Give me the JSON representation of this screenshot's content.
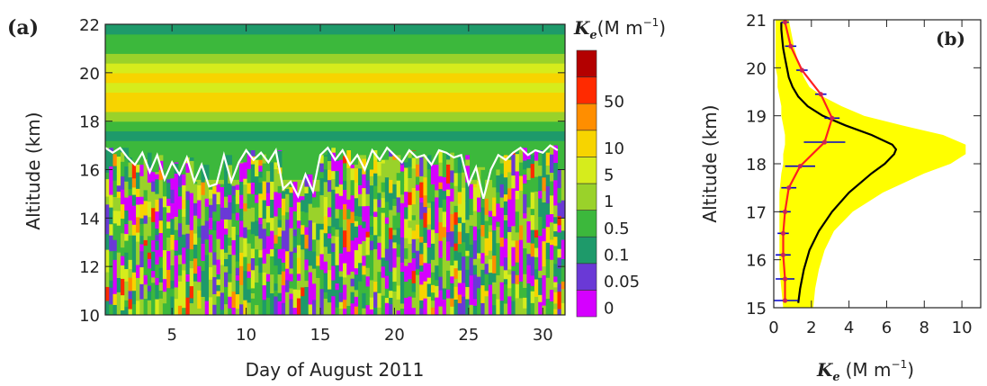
{
  "chart_data": [
    {
      "type": "heatmap",
      "panel_label": "(a)",
      "xlabel": "Day of August 2011",
      "ylabel": "Altitude (km)",
      "xlim": [
        0.5,
        31.5
      ],
      "ylim": [
        10,
        22
      ],
      "x_ticks": [
        "5",
        "10",
        "15",
        "20",
        "25",
        "30"
      ],
      "x_tick_values": [
        5,
        10,
        15,
        20,
        25,
        30
      ],
      "y_ticks": [
        "10",
        "12",
        "14",
        "16",
        "18",
        "20",
        "22"
      ],
      "y_tick_values": [
        10,
        12,
        14,
        16,
        18,
        20,
        22
      ],
      "colorbar": {
        "title_symbol": "K",
        "title_sub": "e",
        "title_units": "(M m",
        "title_exp": "−1",
        "title_close": ")",
        "levels": [
          "0",
          "0.05",
          "0.1",
          "0.5",
          "1",
          "5",
          "10",
          "50"
        ],
        "colors": [
          "#d500ff",
          "#6a39d6",
          "#1e9a6a",
          "#3cb83c",
          "#9ad22a",
          "#d6ec1c",
          "#f7d400",
          "#ff8e00",
          "#ff2a00",
          "#b30000"
        ]
      },
      "background_profile": {
        "altitude_km": [
          10,
          10.8,
          11.6,
          12.4,
          13.2,
          14,
          14.8,
          15.6,
          16.0,
          16.4,
          16.8,
          17.2,
          17.6,
          18.0,
          18.4,
          18.8,
          19.2,
          19.6,
          20.0,
          20.4,
          20.8,
          21.2,
          21.6,
          22
        ],
        "level_index": [
          5,
          5,
          5,
          5,
          4,
          4,
          4,
          3,
          3,
          3,
          3,
          2,
          3,
          4,
          6,
          6,
          5,
          6,
          5,
          4,
          3,
          3,
          2,
          2
        ]
      },
      "tropopause_line": {
        "color": "#ffffff",
        "day": [
          0.5,
          1,
          1.5,
          2,
          2.5,
          3,
          3.5,
          4,
          4.5,
          5,
          5.5,
          6,
          6.5,
          7,
          7.5,
          8,
          8.5,
          9,
          9.5,
          10,
          10.5,
          11,
          11.5,
          12,
          12.5,
          13,
          13.5,
          14,
          14.5,
          15,
          15.5,
          16,
          16.5,
          17,
          17.5,
          18,
          18.5,
          19,
          19.5,
          20,
          20.5,
          21,
          21.5,
          22,
          22.5,
          23,
          23.5,
          24,
          24.5,
          25,
          25.5,
          26,
          26.5,
          27,
          27.5,
          28,
          28.5,
          29,
          29.5,
          30,
          30.5,
          31
        ],
        "altitude_km": [
          16.9,
          16.7,
          16.9,
          16.5,
          16.2,
          16.7,
          15.9,
          16.6,
          15.6,
          16.3,
          15.8,
          16.5,
          15.5,
          16.2,
          15.3,
          15.4,
          16.6,
          15.5,
          16.3,
          16.8,
          16.4,
          16.7,
          16.3,
          16.8,
          15.2,
          15.5,
          14.9,
          15.8,
          15.1,
          16.6,
          16.9,
          16.4,
          16.8,
          16.2,
          16.6,
          16.0,
          16.8,
          16.4,
          16.9,
          16.6,
          16.3,
          16.8,
          16.5,
          16.6,
          16.2,
          16.8,
          16.7,
          16.5,
          16.6,
          15.4,
          16.1,
          14.8,
          16.0,
          16.6,
          16.4,
          16.7,
          16.9,
          16.6,
          16.8,
          16.7,
          17.0,
          16.8
        ]
      }
    },
    {
      "type": "line",
      "panel_label": "(b)",
      "xlabel_symbol": "K",
      "xlabel_sub": "e",
      "xlabel_units": "(M m",
      "xlabel_exp": "−1",
      "xlabel_close": ")",
      "ylabel": "Altitude (km)",
      "xlim": [
        0,
        11
      ],
      "ylim": [
        15,
        21
      ],
      "x_ticks": [
        "0",
        "2",
        "4",
        "6",
        "8",
        "10"
      ],
      "x_tick_values": [
        0,
        2,
        4,
        6,
        8,
        10
      ],
      "y_ticks": [
        "15",
        "16",
        "17",
        "18",
        "19",
        "20",
        "21"
      ],
      "y_tick_values": [
        15,
        16,
        17,
        18,
        19,
        20,
        21
      ],
      "spread_band": {
        "color": "#ffff00",
        "altitude_km": [
          15.0,
          15.4,
          15.8,
          16.2,
          16.6,
          17.0,
          17.4,
          17.8,
          18.0,
          18.2,
          18.4,
          18.6,
          18.8,
          19.0,
          19.2,
          19.4,
          19.6,
          19.8,
          20.0,
          20.4,
          20.8,
          21.0
        ],
        "lower": [
          0.5,
          0.4,
          0.3,
          0.3,
          0.3,
          0.3,
          0.3,
          0.4,
          0.5,
          0.5,
          0.6,
          0.6,
          0.5,
          0.4,
          0.4,
          0.3,
          0.2,
          0.2,
          0.1,
          0.1,
          0.1,
          0.1
        ],
        "upper": [
          2.1,
          2.2,
          2.4,
          2.7,
          3.2,
          4.2,
          5.8,
          8.0,
          9.4,
          10.2,
          10.2,
          9.0,
          6.8,
          4.8,
          3.6,
          2.6,
          1.9,
          1.6,
          1.4,
          1.1,
          0.9,
          0.8
        ]
      },
      "series": [
        {
          "color": "#000000",
          "altitude_km": [
            15.1,
            15.4,
            15.8,
            16.2,
            16.6,
            17.0,
            17.4,
            17.8,
            18.0,
            18.2,
            18.3,
            18.4,
            18.6,
            18.8,
            19.0,
            19.2,
            19.4,
            19.6,
            19.8,
            20.0,
            20.2,
            20.4,
            20.6,
            20.8,
            20.95
          ],
          "Ke": [
            1.3,
            1.4,
            1.6,
            1.9,
            2.4,
            3.1,
            4.0,
            5.2,
            5.9,
            6.4,
            6.5,
            6.3,
            5.2,
            3.8,
            2.6,
            1.8,
            1.3,
            1.0,
            0.8,
            0.7,
            0.6,
            0.5,
            0.45,
            0.4,
            0.4
          ]
        },
        {
          "color": "#ff1f1f",
          "altitude_km": [
            15.15,
            15.6,
            16.1,
            16.55,
            17.0,
            17.5,
            17.95,
            18.45,
            18.95,
            19.45,
            19.95,
            20.45,
            20.95
          ],
          "Ke": [
            0.6,
            0.6,
            0.5,
            0.5,
            0.6,
            0.8,
            1.4,
            2.7,
            3.1,
            2.5,
            1.5,
            0.9,
            0.6
          ],
          "error": [
            0.7,
            0.5,
            0.4,
            0.3,
            0.3,
            0.4,
            0.8,
            1.1,
            0.4,
            0.3,
            0.3,
            0.3,
            0.2
          ],
          "error_color": "#0000cc"
        }
      ]
    }
  ]
}
